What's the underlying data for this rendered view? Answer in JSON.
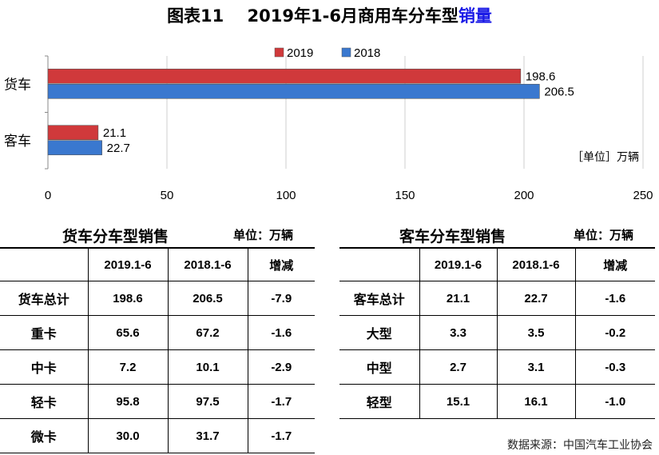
{
  "page_title": {
    "prefix": "图表11",
    "main": "2019年1-6月商用车分车型",
    "highlight": "销量"
  },
  "chart_data": {
    "type": "bar",
    "orientation": "horizontal",
    "categories": [
      "货车",
      "客车"
    ],
    "series": [
      {
        "name": "2019",
        "values": [
          198.6,
          21.1
        ],
        "color": "#d0393b"
      },
      {
        "name": "2018",
        "values": [
          206.5,
          22.7
        ],
        "color": "#3a78cf"
      }
    ],
    "xlim": [
      0,
      250
    ],
    "xticks": [
      0,
      50,
      100,
      150,
      200,
      250
    ],
    "unit_note": "［单位］万辆",
    "legend_position": "top",
    "grid": true
  },
  "truck_table": {
    "title": "货车分车型销售",
    "unit": "单位：万辆",
    "headers": [
      "",
      "2019.1-6",
      "2018.1-6",
      "增减"
    ],
    "rows": [
      [
        "货车总计",
        "198.6",
        "206.5",
        "-7.9"
      ],
      [
        "重卡",
        "65.6",
        "67.2",
        "-1.6"
      ],
      [
        "中卡",
        "7.2",
        "10.1",
        "-2.9"
      ],
      [
        "轻卡",
        "95.8",
        "97.5",
        "-1.7"
      ],
      [
        "微卡",
        "30.0",
        "31.7",
        "-1.7"
      ]
    ]
  },
  "bus_table": {
    "title": "客车分车型销售",
    "unit": "单位：万辆",
    "headers": [
      "",
      "2019.1-6",
      "2018.1-6",
      "增减"
    ],
    "rows": [
      [
        "客车总计",
        "21.1",
        "22.7",
        "-1.6"
      ],
      [
        "大型",
        "3.3",
        "3.5",
        "-0.2"
      ],
      [
        "中型",
        "2.7",
        "3.1",
        "-0.3"
      ],
      [
        "轻型",
        "15.1",
        "16.1",
        "-1.0"
      ]
    ]
  },
  "source": "数据来源：中国汽车工业协会"
}
